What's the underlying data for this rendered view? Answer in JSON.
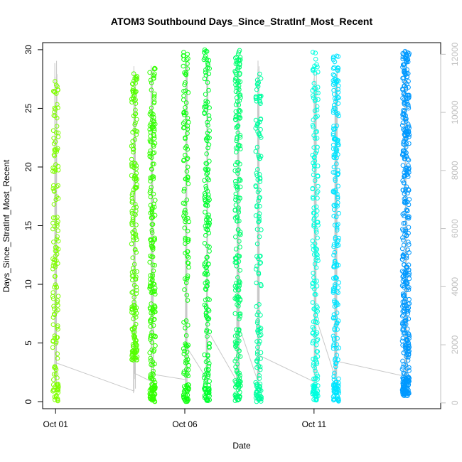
{
  "chart_data": {
    "type": "scatter",
    "title": "ATOM3 Southbound Days_Since_StratInf_Most_Recent",
    "xlabel": "Date",
    "ylabel": "Days_Since_StratInf_Most_Recent",
    "x_ticks": [
      {
        "day": 1,
        "label": "Oct 01"
      },
      {
        "day": 6,
        "label": "Oct 06"
      },
      {
        "day": 11,
        "label": "Oct 11"
      }
    ],
    "xlim": [
      0.5,
      15.9
    ],
    "ylim": [
      -0.6,
      30.6
    ],
    "y_ticks": [
      0,
      5,
      10,
      15,
      20,
      25,
      30
    ],
    "y2lim": [
      -200,
      12400
    ],
    "y2_ticks": [
      0,
      2000,
      4000,
      6000,
      8000,
      10000,
      12000
    ],
    "secondary_series": {
      "type": "line",
      "color": "#c8c8c8"
    },
    "groups": [
      {
        "day": 1.0,
        "color": "#80ff00",
        "yMin": 0,
        "yMax": 27.5
      },
      {
        "day": 4.05,
        "color": "#55ff00",
        "yMin": 3.5,
        "yMax": 28.5
      },
      {
        "day": 4.75,
        "color": "#33ff00",
        "yMin": 0,
        "yMax": 28.5
      },
      {
        "day": 6.05,
        "color": "#10ff10",
        "yMin": 0,
        "yMax": 29.8
      },
      {
        "day": 6.85,
        "color": "#00ff30",
        "yMin": 0,
        "yMax": 30
      },
      {
        "day": 8.05,
        "color": "#00ff70",
        "yMin": 0,
        "yMax": 30
      },
      {
        "day": 8.85,
        "color": "#00ffa0",
        "yMin": 0,
        "yMax": 28.2
      },
      {
        "day": 11.05,
        "color": "#00ffe0",
        "yMin": 0,
        "yMax": 29.8
      },
      {
        "day": 11.85,
        "color": "#00e5ff",
        "yMin": 0,
        "yMax": 29.5
      },
      {
        "day": 14.55,
        "color": "#0099ff",
        "yMin": 0.5,
        "yMax": 30
      }
    ]
  }
}
